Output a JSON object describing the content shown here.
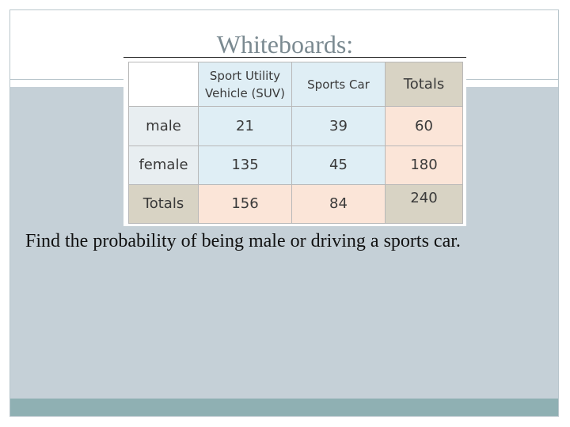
{
  "slide": {
    "title": "Whiteboards:",
    "question": "Find the probability of being male or driving a sports car."
  },
  "table": {
    "columns": {
      "suv": "Sport Utility Vehicle (SUV)",
      "sports_car": "Sports Car",
      "totals": "Totals"
    },
    "rows": [
      {
        "label": "male",
        "suv": "21",
        "sports_car": "39",
        "totals": "60"
      },
      {
        "label": "female",
        "suv": "135",
        "sports_car": "45",
        "totals": "180"
      },
      {
        "label": "Totals",
        "suv": "156",
        "sports_car": "84",
        "totals": "240"
      }
    ]
  },
  "colors": {
    "title_text": "#7b8a91",
    "content_panel": "#c5d0d7",
    "footer_bar": "#8fb0b3",
    "cell_blue": "#dfeef5",
    "cell_peach": "#fbe5d8",
    "cell_tan": "#d8d3c4"
  }
}
